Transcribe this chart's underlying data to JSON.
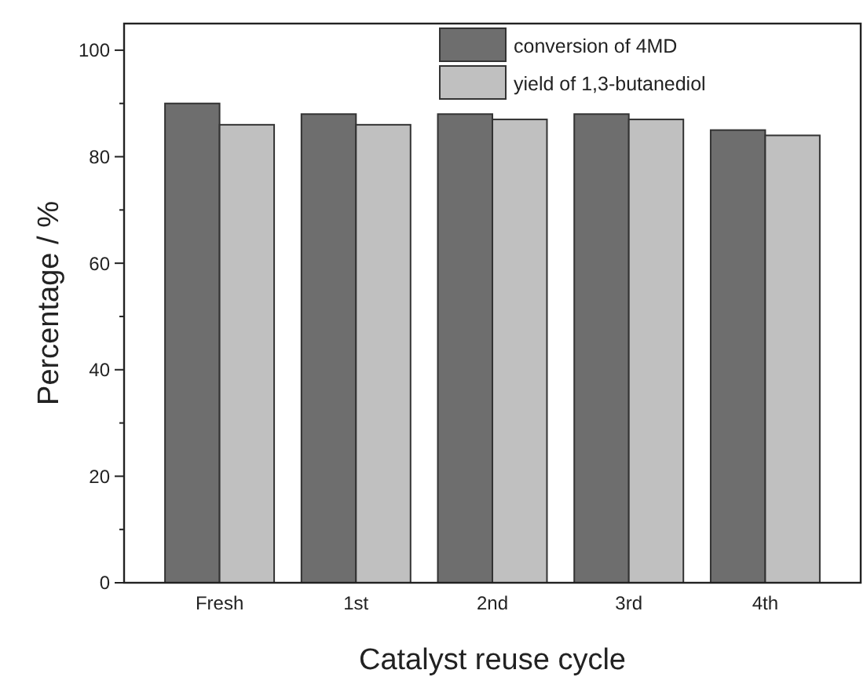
{
  "chart_data": {
    "type": "bar",
    "xlabel": "Catalyst reuse cycle",
    "ylabel": "Percentage / %",
    "categories": [
      "Fresh",
      "1st",
      "2nd",
      "3rd",
      "4th"
    ],
    "series": [
      {
        "name": "conversion of 4MD",
        "color": "#6e6e6e",
        "values": [
          90,
          88,
          88,
          88,
          85
        ]
      },
      {
        "name": "yield of 1,3-butanediol",
        "color": "#c0c0c0",
        "values": [
          86,
          86,
          87,
          87,
          84
        ]
      }
    ],
    "ylim": [
      0,
      105
    ],
    "yticks": [
      0,
      {
        "value": 10,
        "label": null
      },
      20,
      {
        "value": 30,
        "label": null
      },
      40,
      {
        "value": 50,
        "label": null
      },
      60,
      {
        "value": 70,
        "label": null
      },
      80,
      {
        "value": 90,
        "label": null
      },
      100
    ],
    "legend": "top",
    "grid": false
  }
}
